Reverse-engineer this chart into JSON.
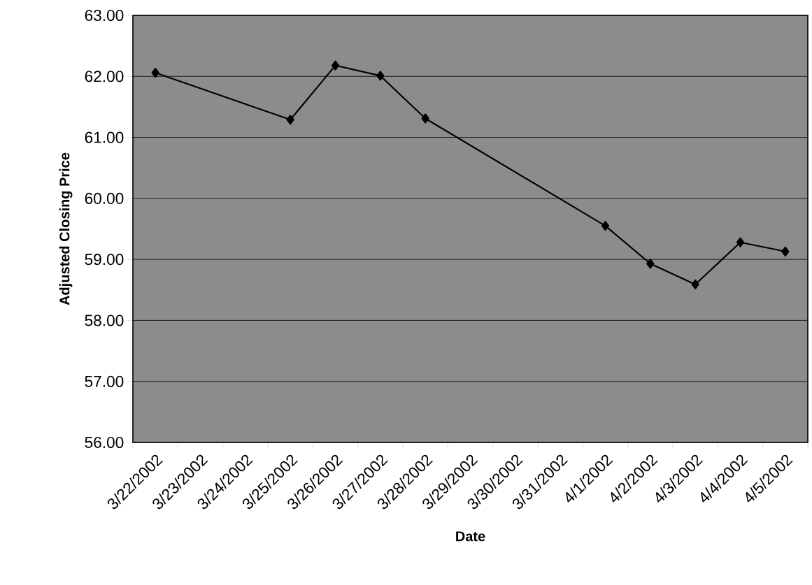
{
  "chart_data": {
    "type": "line",
    "xlabel": "Date",
    "ylabel": "Adjusted Closing Price",
    "categories": [
      "3/22/2002",
      "3/23/2002",
      "3/24/2002",
      "3/25/2002",
      "3/26/2002",
      "3/27/2002",
      "3/28/2002",
      "3/29/2002",
      "3/30/2002",
      "3/31/2002",
      "4/1/2002",
      "4/2/2002",
      "4/3/2002",
      "4/4/2002",
      "4/5/2002"
    ],
    "series": [
      {
        "color": "#000000",
        "values": [
          62.06,
          null,
          null,
          61.29,
          62.18,
          62.01,
          61.31,
          null,
          null,
          null,
          59.55,
          58.93,
          58.59,
          59.28,
          59.13
        ]
      }
    ],
    "ylim": [
      56,
      63
    ],
    "yticks": [
      {
        "value": 56,
        "label": "56.00"
      },
      {
        "value": 57,
        "label": "57.00"
      },
      {
        "value": 58,
        "label": "58.00"
      },
      {
        "value": 59,
        "label": "59.00"
      },
      {
        "value": 60,
        "label": "60.00"
      },
      {
        "value": 61,
        "label": "61.00"
      },
      {
        "value": 62,
        "label": "62.00"
      },
      {
        "value": 63,
        "label": "63.00"
      }
    ],
    "grid": "y",
    "marker": "diamond",
    "line_style": "solid"
  }
}
